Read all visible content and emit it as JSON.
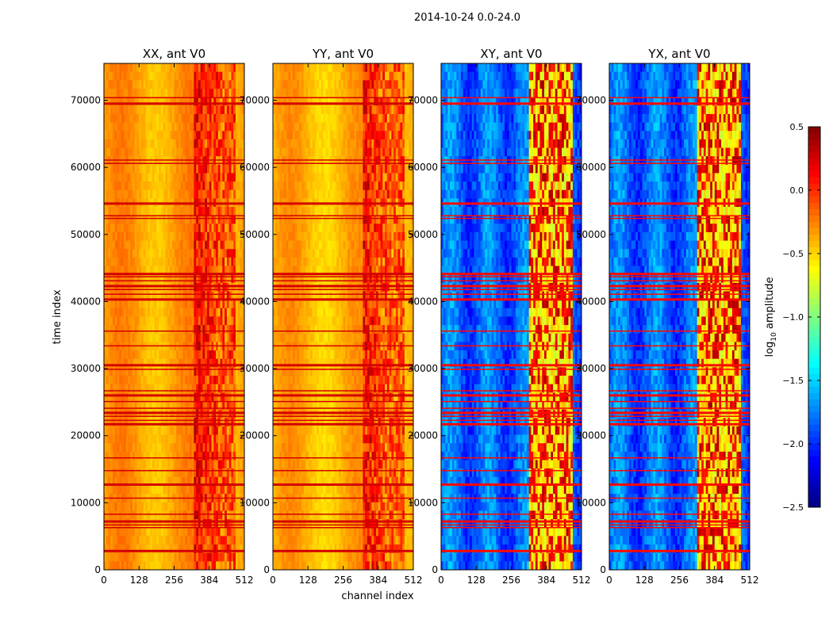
{
  "figure": {
    "suptitle": "2014-10-24 0.0-24.0",
    "xlabel": "channel index",
    "ylabel": "time index"
  },
  "chart_data": {
    "type": "heatmap",
    "x_ticks": [
      0,
      128,
      256,
      384,
      512
    ],
    "y_ticks": [
      0,
      10000,
      20000,
      30000,
      40000,
      50000,
      60000,
      70000
    ],
    "xlim": [
      0,
      512
    ],
    "ylim": [
      0,
      75500
    ],
    "clim": [
      -2.5,
      0.5
    ],
    "colorbar": {
      "label_main": "log",
      "label_sub": "10",
      "label_rest": " amplitude",
      "ticks": [
        "0.5",
        "0.0",
        "−0.5",
        "−1.0",
        "−1.5",
        "−2.0",
        "−2.5"
      ],
      "tick_values": [
        0.5,
        0.0,
        -0.5,
        -1.0,
        -1.5,
        -2.0,
        -2.5
      ]
    },
    "panels": [
      {
        "title": "XX, ant V0",
        "polarization": "XX",
        "mean_level": -0.35,
        "rfi_level": 0.35
      },
      {
        "title": "YY, ant V0",
        "polarization": "YY",
        "mean_level": -0.4,
        "rfi_level": 0.4
      },
      {
        "title": "XY, ant V0",
        "polarization": "XY",
        "mean_level": -1.9,
        "rfi_level": 0.3
      },
      {
        "title": "YX, ant V0",
        "polarization": "YX",
        "mean_level": -1.9,
        "rfi_level": 0.3
      }
    ],
    "flag_rows": [
      2800,
      6200,
      6600,
      7200,
      8200,
      10600,
      12700,
      14700,
      16600,
      21700,
      22200,
      22800,
      23400,
      24000,
      25000,
      26000,
      26600,
      29800,
      30500,
      33300,
      35500,
      40300,
      41000,
      41700,
      42300,
      43000,
      43600,
      44100,
      52300,
      52700,
      54600,
      60500,
      61000,
      69500,
      70300
    ]
  }
}
